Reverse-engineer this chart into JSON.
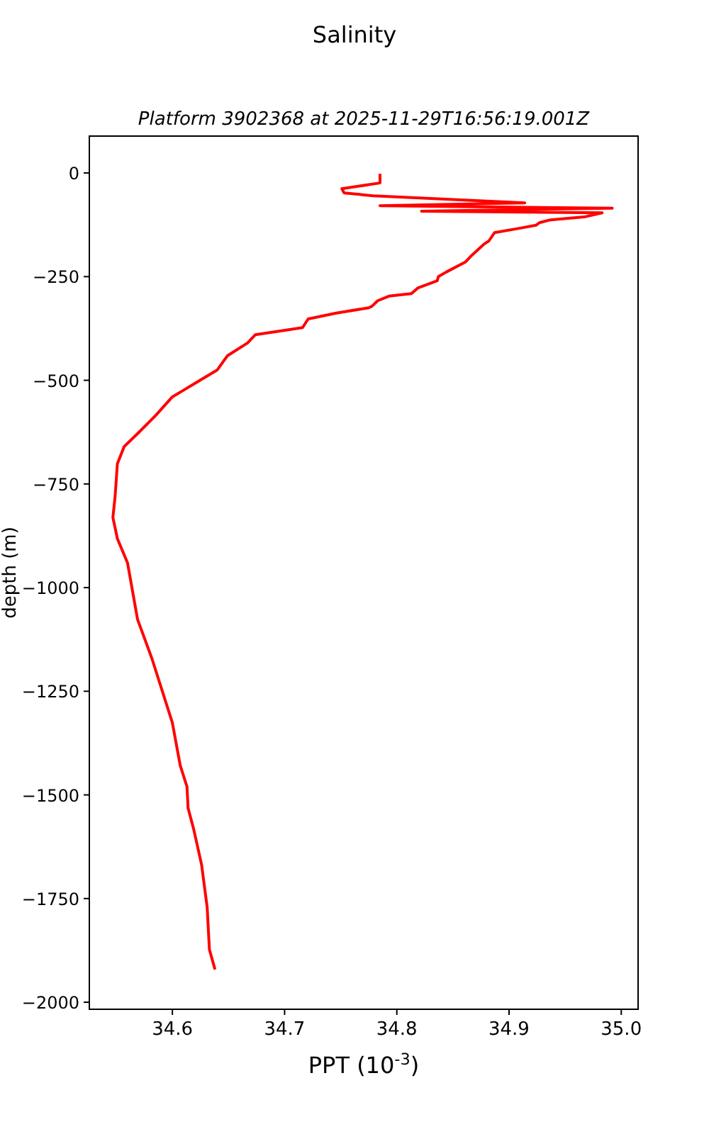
{
  "chart_data": {
    "type": "line",
    "title": "Salinity",
    "subtitle": "Platform 3902368 at 2025-11-29T16:56:19.001Z",
    "xlabel": "PPT (10$^{-3}$)",
    "ylabel": "depth (m)",
    "xlim": [
      34.526,
      35.015
    ],
    "xticks": [
      34.6,
      34.7,
      34.8,
      34.9,
      {
        "value": 35.0,
        "label": "35.0"
      }
    ],
    "ylim": [
      -2017,
      89
    ],
    "yticks": [
      0,
      -250,
      -500,
      -750,
      -1000,
      -1250,
      -1500,
      -1750,
      -2000
    ],
    "series": [
      {
        "color": "#ff0000",
        "x": [
          34.785,
          34.785,
          34.751,
          34.753,
          34.779,
          34.914,
          34.785,
          34.992,
          34.822,
          34.983,
          34.967,
          34.937,
          34.927,
          34.924,
          34.91,
          34.887,
          34.882,
          34.878,
          34.867,
          34.861,
          34.844,
          34.837,
          34.836,
          34.819,
          34.813,
          34.793,
          34.783,
          34.778,
          34.775,
          34.746,
          34.721,
          34.716,
          34.674,
          34.667,
          34.649,
          34.64,
          34.621,
          34.6,
          34.585,
          34.57,
          34.557,
          34.551,
          34.549,
          34.547,
          34.551,
          34.56,
          34.569,
          34.575,
          34.582,
          34.6,
          34.607,
          34.613,
          34.614,
          34.619,
          34.626,
          34.631,
          34.633,
          34.638
        ],
        "values": [
          -2,
          -24,
          -38,
          -48,
          -55,
          -72,
          -79,
          -85,
          -92,
          -96,
          -106,
          -113,
          -120,
          -126,
          -133,
          -144,
          -164,
          -171,
          -198,
          -215,
          -239,
          -250,
          -260,
          -277,
          -291,
          -297,
          -308,
          -321,
          -325,
          -338,
          -352,
          -373,
          -390,
          -410,
          -441,
          -475,
          -506,
          -540,
          -585,
          -626,
          -660,
          -701,
          -779,
          -831,
          -882,
          -940,
          -1077,
          -1121,
          -1173,
          -1326,
          -1429,
          -1480,
          -1532,
          -1583,
          -1668,
          -1771,
          -1873,
          -1921
        ]
      }
    ]
  }
}
